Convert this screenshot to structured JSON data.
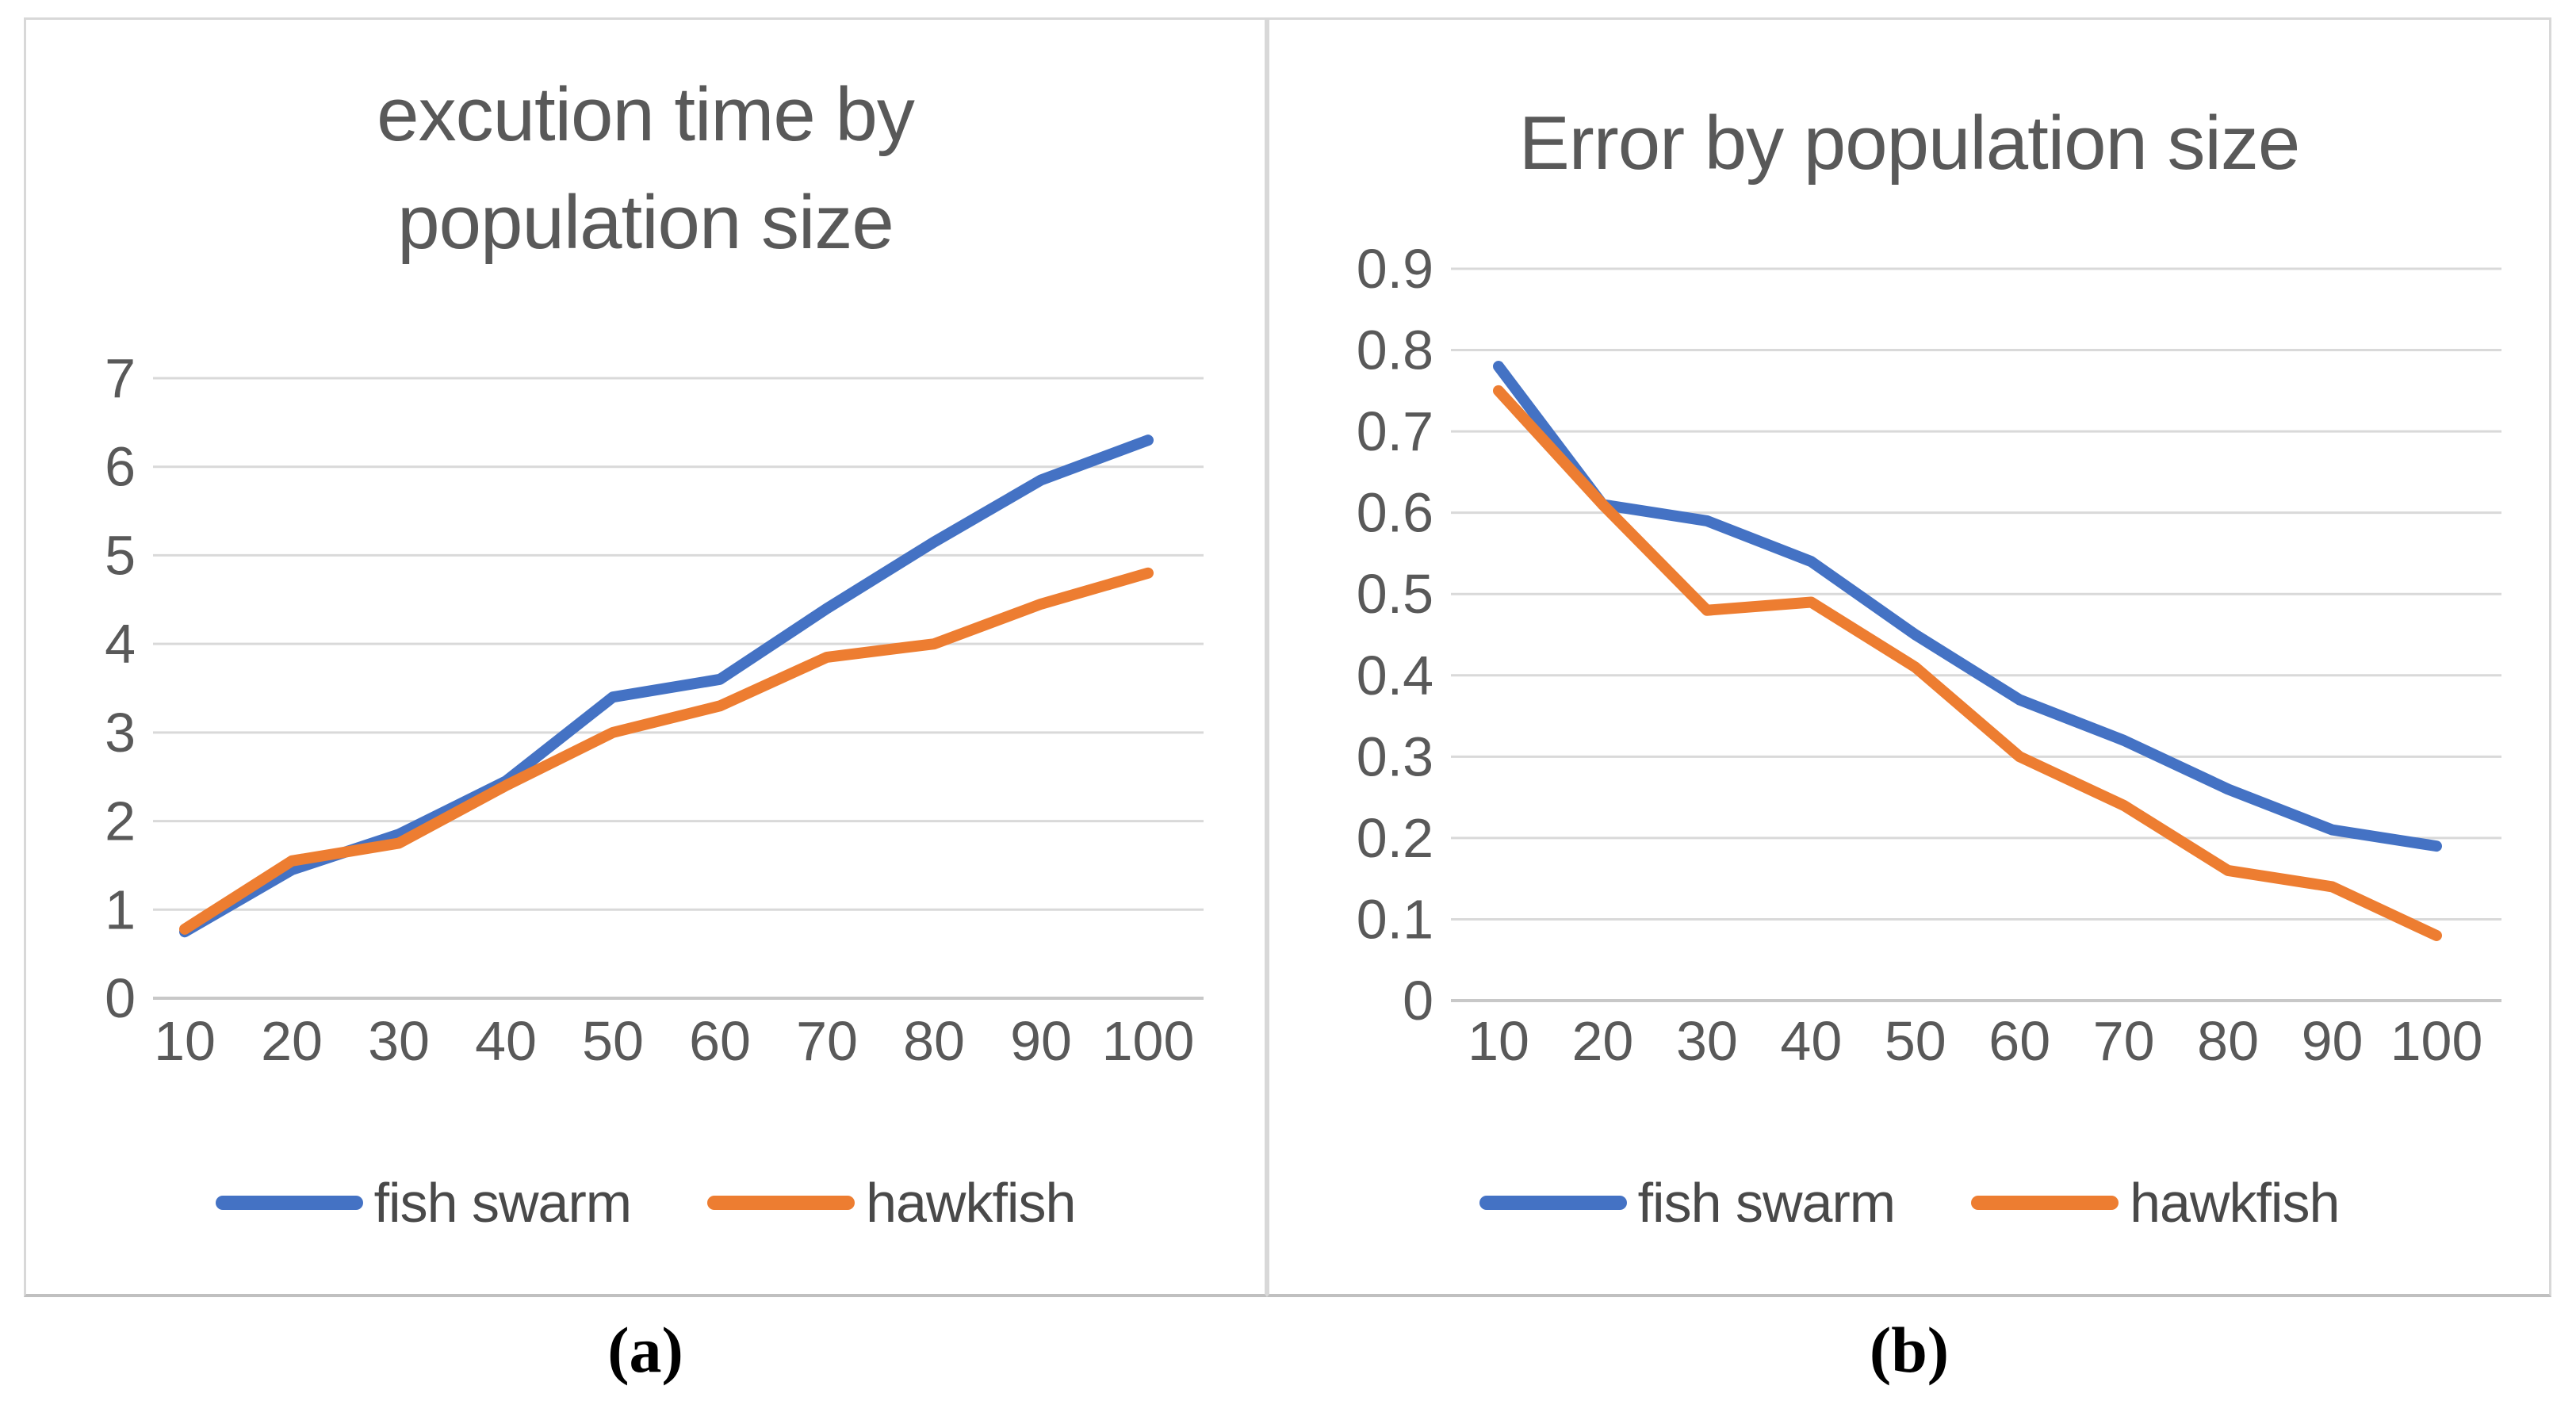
{
  "captions": {
    "a": "(a)",
    "b": "(b)"
  },
  "colors": {
    "fish_swarm": "#4472C4",
    "hawkfish": "#ED7D31",
    "grid": "#D9D9D9",
    "axis_line": "#C8C8C8",
    "axis_text": "#595959",
    "title_text": "#595959",
    "legend_text": "#494949",
    "panel_border": "#D8D8D8",
    "background": "#FFFFFF"
  },
  "chart_data": [
    {
      "type": "line",
      "title": "excution time by population size",
      "xlabel": "",
      "ylabel": "",
      "categories": [
        "10",
        "20",
        "30",
        "40",
        "50",
        "60",
        "70",
        "80",
        "90",
        "100"
      ],
      "ylim": [
        0,
        7
      ],
      "yticks": [
        "0",
        "1",
        "2",
        "3",
        "4",
        "5",
        "6",
        "7"
      ],
      "grid": true,
      "legend_position": "bottom",
      "series": [
        {
          "name": "fish swarm",
          "color_key": "fish_swarm",
          "values": [
            0.75,
            1.45,
            1.85,
            2.45,
            3.4,
            3.6,
            4.4,
            5.15,
            5.85,
            6.3
          ]
        },
        {
          "name": "hawkfish",
          "color_key": "hawkfish",
          "values": [
            0.78,
            1.55,
            1.75,
            2.4,
            3.0,
            3.3,
            3.85,
            4.0,
            4.45,
            4.8
          ]
        }
      ]
    },
    {
      "type": "line",
      "title": "Error by population size",
      "xlabel": "",
      "ylabel": "",
      "categories": [
        "10",
        "20",
        "30",
        "40",
        "50",
        "60",
        "70",
        "80",
        "90",
        "100"
      ],
      "ylim": [
        0,
        0.9
      ],
      "yticks": [
        "0",
        "0.1",
        "0.2",
        "0.3",
        "0.4",
        "0.5",
        "0.6",
        "0.7",
        "0.8",
        "0.9"
      ],
      "grid": true,
      "legend_position": "bottom",
      "series": [
        {
          "name": "fish swarm",
          "color_key": "fish_swarm",
          "values": [
            0.78,
            0.61,
            0.59,
            0.54,
            0.45,
            0.37,
            0.32,
            0.26,
            0.21,
            0.19
          ]
        },
        {
          "name": "hawkfish",
          "color_key": "hawkfish",
          "values": [
            0.75,
            0.61,
            0.48,
            0.49,
            0.41,
            0.3,
            0.24,
            0.16,
            0.14,
            0.08
          ]
        }
      ]
    }
  ]
}
